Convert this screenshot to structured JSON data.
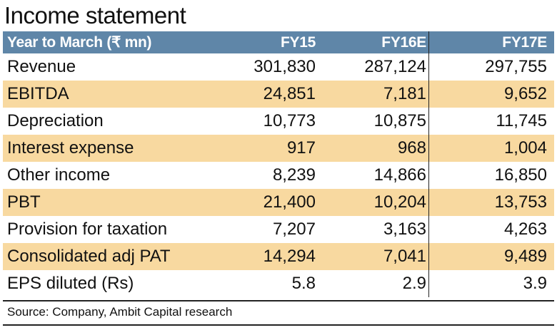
{
  "title": "Income statement",
  "table": {
    "header": {
      "label": "Year to March (₹ mn)",
      "columns": [
        "FY15",
        "FY16E",
        "FY17E"
      ]
    },
    "rows": [
      {
        "label": "Revenue",
        "values": [
          "301,830",
          "287,124",
          "297,755"
        ],
        "shaded": false
      },
      {
        "label": "EBITDA",
        "values": [
          "24,851",
          "7,181",
          "9,652"
        ],
        "shaded": true
      },
      {
        "label": "Depreciation",
        "values": [
          "10,773",
          "10,875",
          "11,745"
        ],
        "shaded": false
      },
      {
        "label": "Interest expense",
        "values": [
          "917",
          "968",
          "1,004"
        ],
        "shaded": true
      },
      {
        "label": "Other income",
        "values": [
          "8,239",
          "14,866",
          "16,850"
        ],
        "shaded": false
      },
      {
        "label": "PBT",
        "values": [
          "21,400",
          "10,204",
          "13,753"
        ],
        "shaded": true
      },
      {
        "label": "Provision for taxation",
        "values": [
          "7,207",
          "3,163",
          "4,263"
        ],
        "shaded": false
      },
      {
        "label": "Consolidated adj PAT",
        "values": [
          "14,294",
          "7,041",
          "9,489"
        ],
        "shaded": true
      },
      {
        "label": "EPS diluted (Rs)",
        "values": [
          "5.8",
          "2.9",
          "3.9"
        ],
        "shaded": false
      }
    ]
  },
  "source": "Source: Company, Ambit Capital research",
  "colors": {
    "header_bg": "#5f86a8",
    "shaded_row_bg": "#f8d9a0"
  }
}
